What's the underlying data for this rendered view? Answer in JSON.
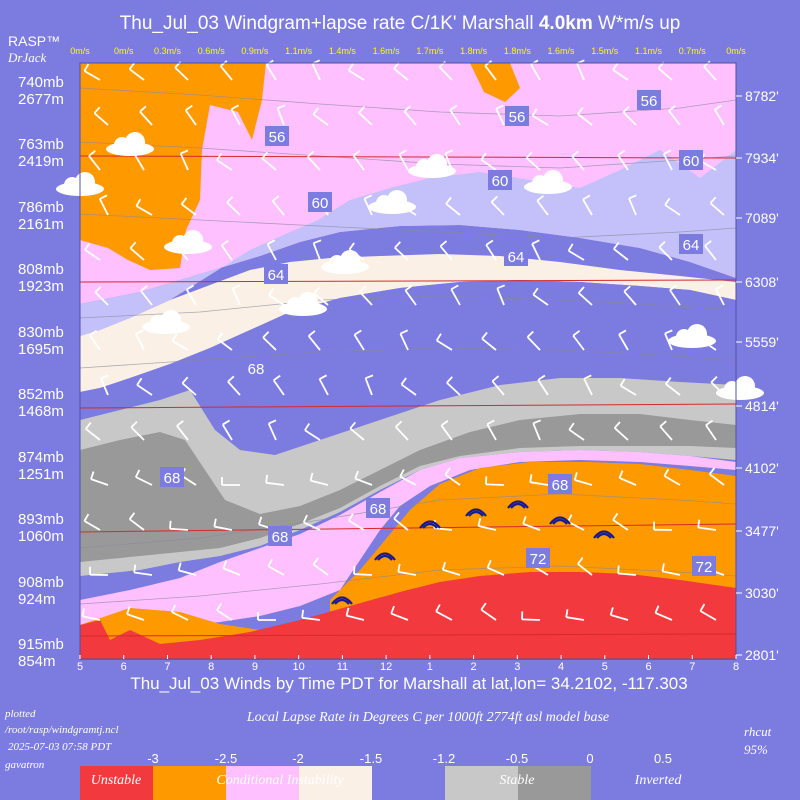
{
  "header": {
    "title_prefix": "Thu_Jul_03 Windgram+lapse rate C/1K'  Marshall ",
    "title_bold": "4.0km",
    "title_suffix": "  W*m/s up",
    "brand": "RASP™",
    "brand_sub": "DrJack"
  },
  "wstar_labels": [
    "0m/s",
    "0m/s",
    "0.3m/s",
    "0.6m/s",
    "0.9m/s",
    "1.1m/s",
    "1.4m/s",
    "1.6m/s",
    "1.7m/s",
    "1.8m/s",
    "1.8m/s",
    "1.6m/s",
    "1.5m/s",
    "1.1m/s",
    "0.7m/s",
    "0m/s"
  ],
  "chart_data": {
    "type": "heatmap",
    "title": "Thu_Jul_03 Windgram+lapse rate C/1K'  Marshall 4.0km  W*m/s up",
    "xlabel": "Thu_Jul_03 Winds by Time PDT for Marshall at lat,lon= 34.2102, -117.303",
    "x": [
      "5",
      "6",
      "7",
      "8",
      "9",
      "10",
      "11",
      "12",
      "1",
      "2",
      "3",
      "4",
      "5",
      "6",
      "7",
      "8"
    ],
    "left_axis": [
      {
        "mb": "740mb",
        "m": "2677m"
      },
      {
        "mb": "763mb",
        "m": "2419m"
      },
      {
        "mb": "786mb",
        "m": "2161m"
      },
      {
        "mb": "808mb",
        "m": "1923m"
      },
      {
        "mb": "830mb",
        "m": "1695m"
      },
      {
        "mb": "852mb",
        "m": "1468m"
      },
      {
        "mb": "874mb",
        "m": "1251m"
      },
      {
        "mb": "893mb",
        "m": "1060m"
      },
      {
        "mb": "908mb",
        "m": "924m"
      },
      {
        "mb": "915mb",
        "m": "854m"
      }
    ],
    "right_axis": [
      "8782'",
      "7934'",
      "7089'",
      "6308'",
      "5559'",
      "4814'",
      "4102'",
      "3477'",
      "3030'",
      "2801'"
    ],
    "contour_labels": [
      "56",
      "56",
      "56",
      "60",
      "60",
      "60",
      "64",
      "64",
      "64",
      "68",
      "68",
      "68",
      "68",
      "68",
      "72",
      "72"
    ],
    "legend": {
      "title": "Local Lapse Rate in Degrees C per 1000ft  2774ft asl model base",
      "ticks": [
        "-3",
        "-2.5",
        "-2",
        "-1.5",
        "-1.2",
        "-0.5",
        "0",
        "0.5"
      ],
      "bands": [
        {
          "label": "Unstable",
          "color": "#f23a3e"
        },
        {
          "label": "Conditional Instability",
          "color": "#ff9900"
        },
        {
          "label": "",
          "color": "#ffc0ff"
        },
        {
          "label": "",
          "color": "#fbf0e6"
        },
        {
          "label": "Stable",
          "color": "#7b7be0"
        },
        {
          "label": "Inverted",
          "color": "#c8c8c8"
        },
        {
          "label": "",
          "color": "#999999"
        }
      ]
    }
  },
  "footer": {
    "plotted": "plotted",
    "path": "/root/rasp/windgramtj.ncl",
    "date": "2025-07-03 07:58 PDT",
    "user": "gavatron",
    "rhcut": "rhcut",
    "rhcut_value": "95%"
  },
  "colors": {
    "background": "#7b7be0",
    "unstable": "#f23a3e",
    "conditional": "#ff9900",
    "pink": "#ffc0ff",
    "lavender": "#c3c0fa",
    "cream": "#fbf0e6",
    "stable": "#7b7be0",
    "gray_light": "#c8c8c8",
    "gray_dark": "#999999"
  }
}
